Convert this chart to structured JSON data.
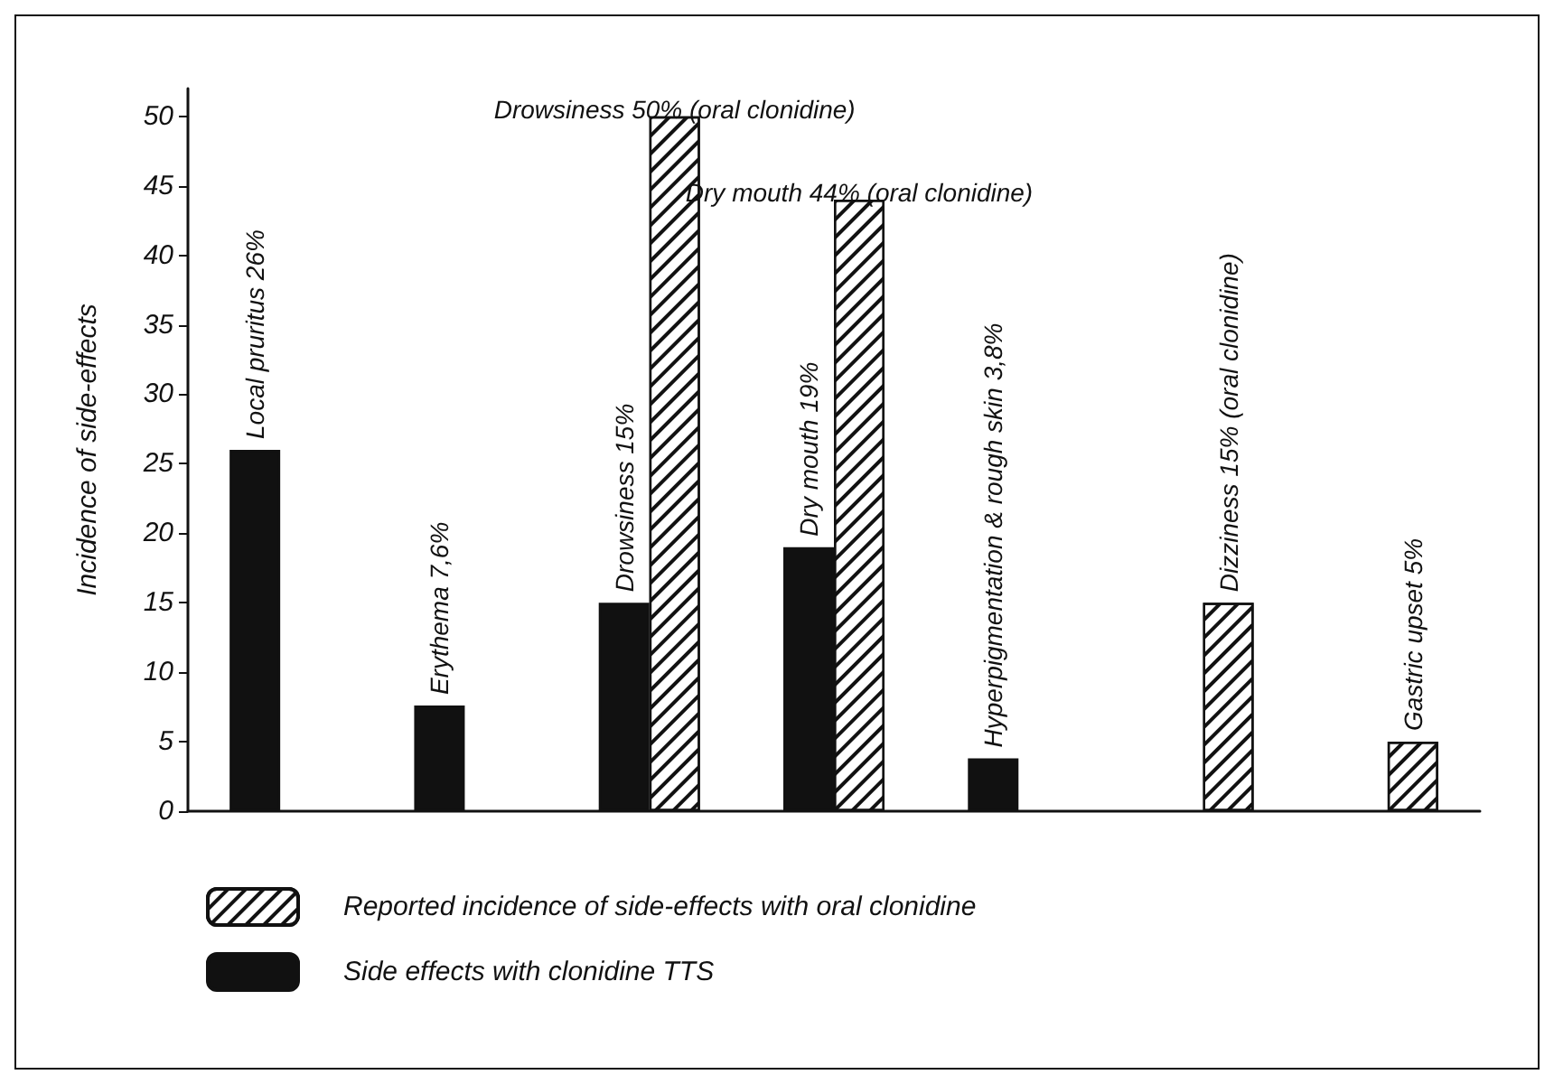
{
  "chart_data": {
    "type": "bar",
    "ylabel": "Incidence of side-effects",
    "categories": [
      null,
      null,
      null,
      null,
      null,
      null,
      null
    ],
    "series": [
      {
        "name": "Reported incidence of side-effects with oral clonidine",
        "color": "#ffffff",
        "values": [
          null,
          null,
          50,
          44,
          null,
          15,
          5
        ],
        "value_labels": [
          null,
          null,
          "Drowsiness 50% (oral clonidine)",
          "Dry mouth 44% (oral clonidine)",
          null,
          "Dizziness 15% (oral clonidine)",
          "Gastric upset 5%"
        ]
      },
      {
        "name": "Side effects with clonidine TTS",
        "color": "#111111",
        "values": [
          26,
          7.6,
          15,
          19,
          3.8,
          null,
          null
        ],
        "value_labels": [
          "Local pruritus 26%",
          "Erythema 7,6%",
          "Drowsiness 15%",
          "Dry mouth 19%",
          "Hyperpigmentation & rough skin 3,8%",
          null,
          null
        ]
      }
    ],
    "ylim": [
      0,
      52
    ],
    "yticks": [
      0,
      5,
      10,
      15,
      20,
      25,
      30,
      35,
      40,
      45,
      50
    ],
    "grid": false,
    "legend": "bottom left"
  }
}
